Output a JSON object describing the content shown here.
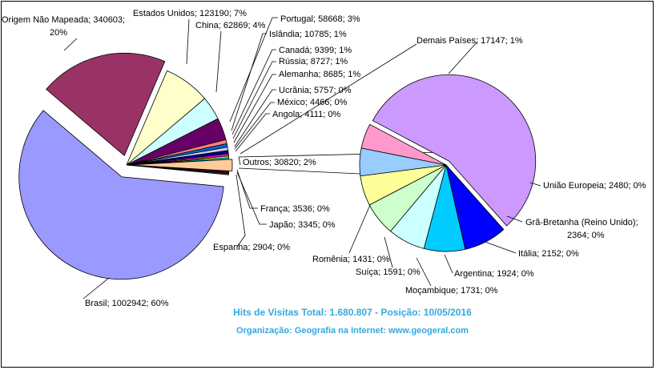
{
  "chart_data": {
    "type": "pie",
    "subtype": "pie-of-pie",
    "main_pie": {
      "slices": [
        {
          "label": "Brasil",
          "value": 1002942,
          "percent": "60%",
          "color": "#9999ff"
        },
        {
          "label": "Origem Não Mapeada",
          "value": 340603,
          "percent": "20%",
          "color": "#993366"
        },
        {
          "label": "Estados Unidos",
          "value": 123190,
          "percent": "7%",
          "color": "#ffffcc"
        },
        {
          "label": "China",
          "value": 62869,
          "percent": "4%",
          "color": "#ccffff"
        },
        {
          "label": "Portugal",
          "value": 58668,
          "percent": "3%",
          "color": "#660066"
        },
        {
          "label": "Islândia",
          "value": 10785,
          "percent": "1%",
          "color": "#ff8080"
        },
        {
          "label": "Canadá",
          "value": 9399,
          "percent": "1%",
          "color": "#0066cc"
        },
        {
          "label": "Rússia",
          "value": 8727,
          "percent": "1%",
          "color": "#ccccff"
        },
        {
          "label": "Alemanha",
          "value": 8685,
          "percent": "1%",
          "color": "#000080"
        },
        {
          "label": "Ucrânia",
          "value": 5757,
          "percent": "0%",
          "color": "#ff00ff"
        },
        {
          "label": "México",
          "value": 4466,
          "percent": "0%",
          "color": "#ffff00"
        },
        {
          "label": "Angola",
          "value": 4111,
          "percent": "0%",
          "color": "#00ffff"
        },
        {
          "label": "Outros",
          "value": 30820,
          "percent": "2%",
          "color": "#ffcc99"
        },
        {
          "label": "França",
          "value": 3536,
          "percent": "0%",
          "color": "#800080"
        },
        {
          "label": "Japão",
          "value": 3345,
          "percent": "0%",
          "color": "#800000"
        },
        {
          "label": "Espanha",
          "value": 2904,
          "percent": "0%",
          "color": "#008080"
        }
      ]
    },
    "secondary_pie": {
      "slices": [
        {
          "label": "Demais Países",
          "value": 17147,
          "percent": "1%",
          "color": "#cc99ff"
        },
        {
          "label": "União Europeia",
          "value": 2480,
          "percent": "0%",
          "color": "#0000ff"
        },
        {
          "label": "Grã-Bretanha (Reino Unido)",
          "value": 2364,
          "percent": "0%",
          "color": "#00ccff"
        },
        {
          "label": "Itália",
          "value": 2152,
          "percent": "0%",
          "color": "#ccffff"
        },
        {
          "label": "Argentina",
          "value": 1924,
          "percent": "0%",
          "color": "#ccffcc"
        },
        {
          "label": "Moçambique",
          "value": 1731,
          "percent": "0%",
          "color": "#ffff99"
        },
        {
          "label": "Suíça",
          "value": 1591,
          "percent": "0%",
          "color": "#99ccff"
        },
        {
          "label": "Romênia",
          "value": 1431,
          "percent": "0%",
          "color": "#ff99cc"
        }
      ]
    },
    "legend": "none"
  },
  "captions": {
    "title": "Hits de Visitas Total: 1.680.807 - Posição: 10/05/2016",
    "organization": "Organização: Geografia na Internet: www.geogeral.com",
    "color": "#33a9dc"
  }
}
